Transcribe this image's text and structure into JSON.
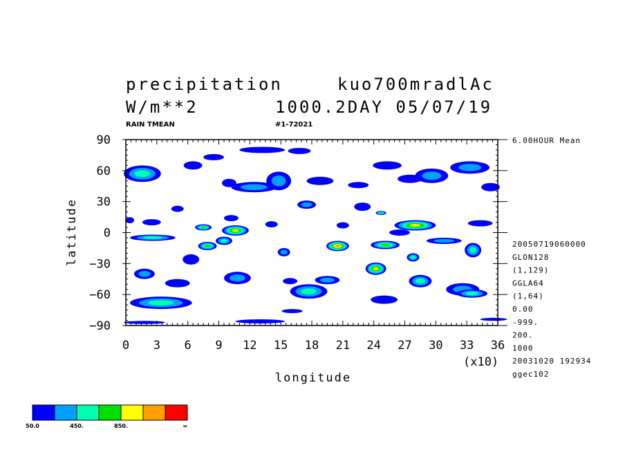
{
  "header": {
    "title_left": "precipitation",
    "title_right": "kuo700mradlAc",
    "units": "W/m**2",
    "run_info": "1000.2DAY 05/07/19",
    "var_label": "RAIN TMEAN",
    "record_label": "#1-72021",
    "mean_label": "6.00HOUR Mean"
  },
  "side_info": [
    "20050719060000",
    "GLON128",
    "(1,129)",
    "GGLA64",
    "(1,64)",
    "0.00",
    "-999.",
    "200.",
    "1000",
    "20031020 192934",
    "ggec102"
  ],
  "chart_data": {
    "type": "heatmap",
    "title": "precipitation",
    "xlabel": "longitude",
    "ylabel": "latitude",
    "x_scale_label": "(x10)",
    "xlim": [
      0,
      36
    ],
    "ylim": [
      -90,
      90
    ],
    "x_ticks": [
      "0",
      "3",
      "6",
      "9",
      "12",
      "15",
      "18",
      "21",
      "24",
      "27",
      "30",
      "33",
      "36"
    ],
    "y_ticks": [
      "90",
      "60",
      "30",
      "0",
      "−30",
      "−60",
      "−90"
    ],
    "contour_levels": [
      50,
      250,
      450,
      650,
      850,
      1050,
      1250
    ],
    "colorbar": {
      "colors": [
        "#0000ff",
        "#00a0ff",
        "#00ffb0",
        "#00e000",
        "#ffff00",
        "#ffa000",
        "#ff0000"
      ],
      "labels": [
        "50.0",
        "450.",
        "850.",
        "∞"
      ]
    },
    "features": [
      {
        "lon": 1.6,
        "lat": 57,
        "rx": 1.8,
        "ry": 8,
        "level": 3
      },
      {
        "lon": 6.5,
        "lat": 65,
        "rx": 0.9,
        "ry": 4,
        "level": 1
      },
      {
        "lon": 8.5,
        "lat": 73,
        "rx": 1.0,
        "ry": 3,
        "level": 1
      },
      {
        "lon": 10.0,
        "lat": 48,
        "rx": 0.7,
        "ry": 4,
        "level": 1
      },
      {
        "lon": 13.2,
        "lat": 80,
        "rx": 2.2,
        "ry": 3,
        "level": 1
      },
      {
        "lon": 14.8,
        "lat": 50,
        "rx": 1.2,
        "ry": 9,
        "level": 2
      },
      {
        "lon": 12.4,
        "lat": 44,
        "rx": 2.2,
        "ry": 5,
        "level": 2
      },
      {
        "lon": 16.8,
        "lat": 79,
        "rx": 1.1,
        "ry": 3,
        "level": 1
      },
      {
        "lon": 18.8,
        "lat": 50,
        "rx": 1.3,
        "ry": 4,
        "level": 1
      },
      {
        "lon": 22.5,
        "lat": 46,
        "rx": 1.0,
        "ry": 3,
        "level": 1
      },
      {
        "lon": 25.3,
        "lat": 65,
        "rx": 1.4,
        "ry": 4,
        "level": 1
      },
      {
        "lon": 27.5,
        "lat": 52,
        "rx": 1.2,
        "ry": 4,
        "level": 1
      },
      {
        "lon": 29.6,
        "lat": 55,
        "rx": 1.6,
        "ry": 7,
        "level": 2
      },
      {
        "lon": 33.3,
        "lat": 63,
        "rx": 1.9,
        "ry": 6,
        "level": 2
      },
      {
        "lon": 35.3,
        "lat": 44,
        "rx": 0.9,
        "ry": 4,
        "level": 1
      },
      {
        "lon": 2.5,
        "lat": 10,
        "rx": 0.9,
        "ry": 3,
        "level": 1
      },
      {
        "lon": 5.0,
        "lat": 23,
        "rx": 0.6,
        "ry": 3,
        "level": 1
      },
      {
        "lon": 2.6,
        "lat": -5,
        "rx": 2.2,
        "ry": 3,
        "level": 3
      },
      {
        "lon": 7.5,
        "lat": 5,
        "rx": 0.8,
        "ry": 3,
        "level": 4
      },
      {
        "lon": 7.9,
        "lat": -13,
        "rx": 0.9,
        "ry": 4,
        "level": 4
      },
      {
        "lon": 9.5,
        "lat": -8,
        "rx": 0.8,
        "ry": 4,
        "level": 3
      },
      {
        "lon": 10.6,
        "lat": 2,
        "rx": 1.3,
        "ry": 5,
        "level": 5
      },
      {
        "lon": 10.2,
        "lat": 14,
        "rx": 0.7,
        "ry": 3,
        "level": 1
      },
      {
        "lon": 14.1,
        "lat": 8,
        "rx": 0.6,
        "ry": 3,
        "level": 1
      },
      {
        "lon": 15.3,
        "lat": -19,
        "rx": 0.6,
        "ry": 4,
        "level": 2
      },
      {
        "lon": 17.5,
        "lat": 27,
        "rx": 0.9,
        "ry": 4,
        "level": 2
      },
      {
        "lon": 20.5,
        "lat": -13,
        "rx": 1.1,
        "ry": 5,
        "level": 6
      },
      {
        "lon": 21.0,
        "lat": 7,
        "rx": 0.6,
        "ry": 3,
        "level": 1
      },
      {
        "lon": 22.9,
        "lat": 25,
        "rx": 0.8,
        "ry": 4,
        "level": 1
      },
      {
        "lon": 24.7,
        "lat": 19,
        "rx": 0.5,
        "ry": 2,
        "level": 4
      },
      {
        "lon": 25.1,
        "lat": -12,
        "rx": 1.4,
        "ry": 4,
        "level": 4
      },
      {
        "lon": 26.5,
        "lat": 0,
        "rx": 1.0,
        "ry": 3,
        "level": 1
      },
      {
        "lon": 28.0,
        "lat": 7,
        "rx": 2.0,
        "ry": 5,
        "level": 5
      },
      {
        "lon": 30.8,
        "lat": -8,
        "rx": 1.7,
        "ry": 3,
        "level": 2
      },
      {
        "lon": 33.6,
        "lat": -17,
        "rx": 0.8,
        "ry": 7,
        "level": 3
      },
      {
        "lon": 34.3,
        "lat": 9,
        "rx": 1.2,
        "ry": 3,
        "level": 1
      },
      {
        "lon": 27.8,
        "lat": -24,
        "rx": 0.6,
        "ry": 4,
        "level": 3
      },
      {
        "lon": 1.8,
        "lat": -40,
        "rx": 1.0,
        "ry": 5,
        "level": 2
      },
      {
        "lon": 6.3,
        "lat": -26,
        "rx": 0.8,
        "ry": 5,
        "level": 1
      },
      {
        "lon": 3.4,
        "lat": -68,
        "rx": 3.0,
        "ry": 6,
        "level": 3
      },
      {
        "lon": 5.0,
        "lat": -49,
        "rx": 1.2,
        "ry": 4,
        "level": 1
      },
      {
        "lon": 10.8,
        "lat": -44,
        "rx": 1.3,
        "ry": 6,
        "level": 2
      },
      {
        "lon": 15.9,
        "lat": -47,
        "rx": 0.7,
        "ry": 3,
        "level": 1
      },
      {
        "lon": 17.7,
        "lat": -57,
        "rx": 1.8,
        "ry": 7,
        "level": 3
      },
      {
        "lon": 16.1,
        "lat": -76,
        "rx": 1.0,
        "ry": 2,
        "level": 1
      },
      {
        "lon": 24.2,
        "lat": -35,
        "rx": 1.0,
        "ry": 6,
        "level": 5
      },
      {
        "lon": 19.5,
        "lat": -46,
        "rx": 1.2,
        "ry": 4,
        "level": 2
      },
      {
        "lon": 25.0,
        "lat": -65,
        "rx": 1.3,
        "ry": 4,
        "level": 1
      },
      {
        "lon": 28.5,
        "lat": -47,
        "rx": 1.1,
        "ry": 6,
        "level": 3
      },
      {
        "lon": 32.6,
        "lat": -55,
        "rx": 1.6,
        "ry": 6,
        "level": 2
      },
      {
        "lon": 33.5,
        "lat": -59,
        "rx": 1.5,
        "ry": 4,
        "level": 3
      },
      {
        "lon": 35.6,
        "lat": -84,
        "rx": 1.3,
        "ry": 1.5,
        "level": 1
      },
      {
        "lon": 1.8,
        "lat": -87,
        "rx": 2.0,
        "ry": 1.5,
        "level": 1
      },
      {
        "lon": 13.0,
        "lat": -86,
        "rx": 2.4,
        "ry": 2,
        "level": 1
      },
      {
        "lon": 0.4,
        "lat": 12,
        "rx": 0.4,
        "ry": 3,
        "level": 1
      }
    ]
  }
}
